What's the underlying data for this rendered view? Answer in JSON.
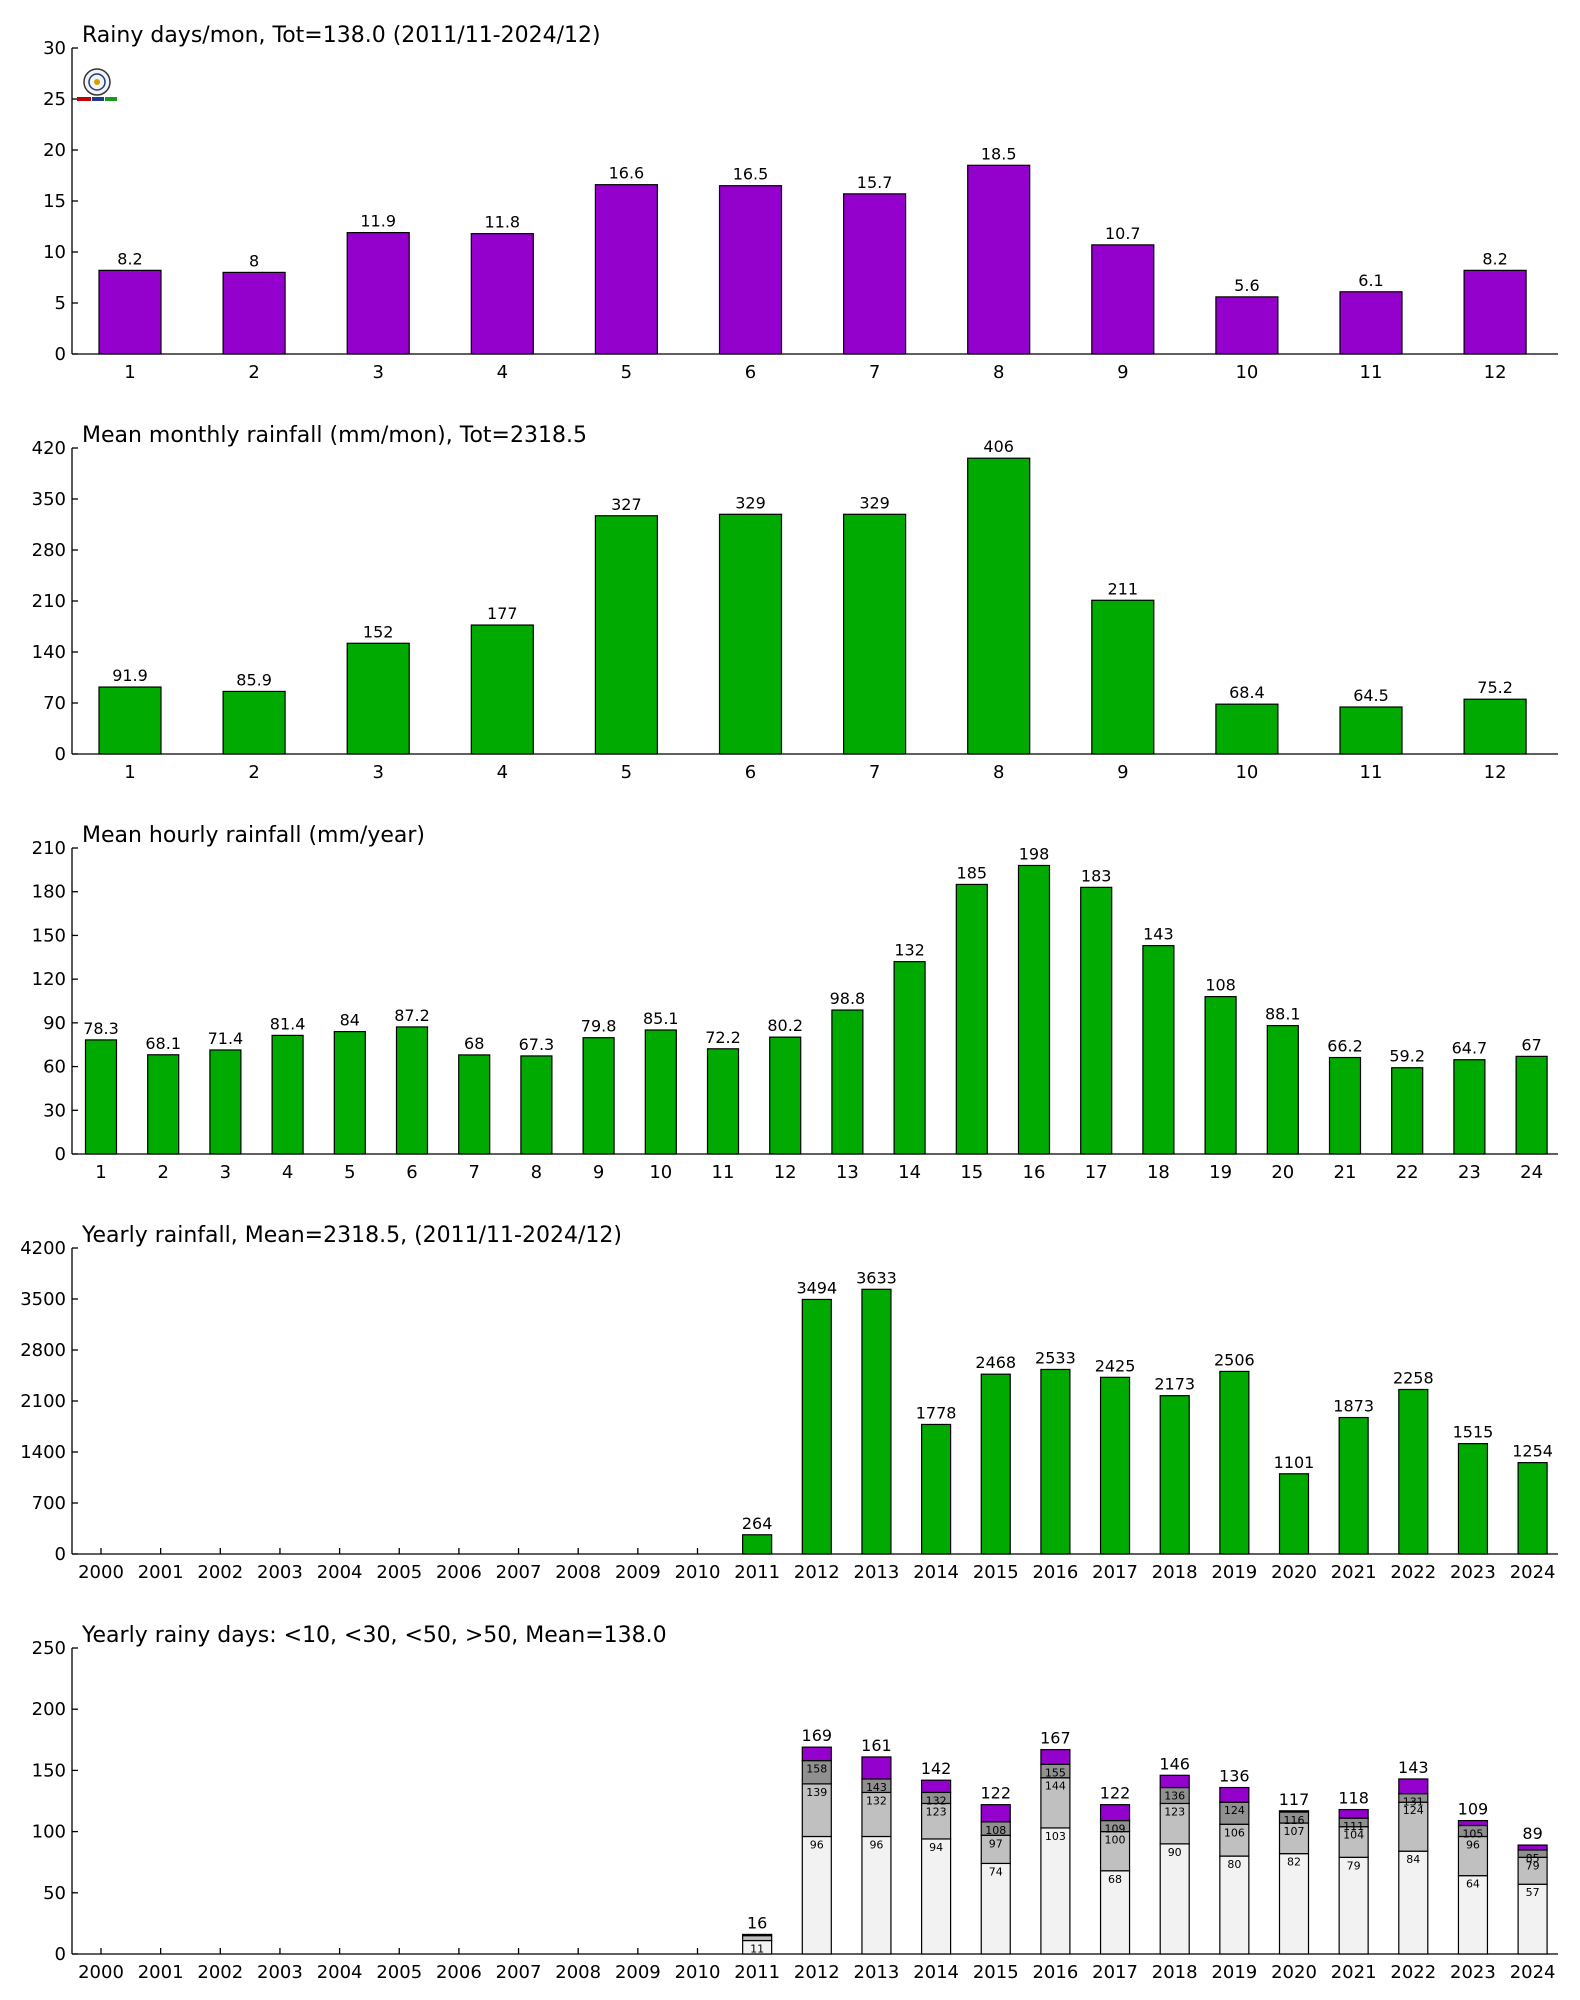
{
  "colors": {
    "purple": "#9400cc",
    "green": "#00aa00",
    "stack": [
      "#f2f2f2",
      "#c0c0c0",
      "#909090",
      "#9400cc"
    ]
  },
  "logo_icon": "station-logo-icon",
  "chart_data": [
    {
      "type": "bar",
      "title": "Rainy days/mon, Tot=138.0 (2011/11-2024/12)",
      "categories": [
        "1",
        "2",
        "3",
        "4",
        "5",
        "6",
        "7",
        "8",
        "9",
        "10",
        "11",
        "12"
      ],
      "values": [
        8.2,
        8,
        11.9,
        11.8,
        16.6,
        16.5,
        15.7,
        18.5,
        10.7,
        5.6,
        6.1,
        8.2
      ],
      "labels": [
        "8.2",
        "8",
        "11.9",
        "11.8",
        "16.6",
        "16.5",
        "15.7",
        "18.5",
        "10.7",
        "5.6",
        "6.1",
        "8.2"
      ],
      "ylim": [
        0,
        30
      ],
      "yticks": [
        "0",
        "5",
        "10",
        "15",
        "20",
        "25",
        "30"
      ],
      "color": "#9400cc"
    },
    {
      "type": "bar",
      "title": "Mean monthly rainfall (mm/mon), Tot=2318.5",
      "categories": [
        "1",
        "2",
        "3",
        "4",
        "5",
        "6",
        "7",
        "8",
        "9",
        "10",
        "11",
        "12"
      ],
      "values": [
        91.9,
        85.9,
        152,
        177,
        327,
        329,
        329,
        406,
        211,
        68.4,
        64.5,
        75.2
      ],
      "labels": [
        "91.9",
        "85.9",
        "152",
        "177",
        "327",
        "329",
        "329",
        "406",
        "211",
        "68.4",
        "64.5",
        "75.2"
      ],
      "ylim": [
        0,
        420
      ],
      "yticks": [
        "0",
        "70",
        "140",
        "210",
        "280",
        "350",
        "420"
      ],
      "color": "#00aa00"
    },
    {
      "type": "bar",
      "title": "Mean hourly rainfall (mm/year)",
      "categories": [
        "1",
        "2",
        "3",
        "4",
        "5",
        "6",
        "7",
        "8",
        "9",
        "10",
        "11",
        "12",
        "13",
        "14",
        "15",
        "16",
        "17",
        "18",
        "19",
        "20",
        "21",
        "22",
        "23",
        "24"
      ],
      "values": [
        78.3,
        68.1,
        71.4,
        81.4,
        84,
        87.2,
        68,
        67.3,
        79.8,
        85.1,
        72.2,
        80.2,
        98.8,
        132,
        185,
        198,
        183,
        143,
        108,
        88.1,
        66.2,
        59.2,
        64.7,
        67
      ],
      "labels": [
        "78.3",
        "68.1",
        "71.4",
        "81.4",
        "84",
        "87.2",
        "68",
        "67.3",
        "79.8",
        "85.1",
        "72.2",
        "80.2",
        "98.8",
        "132",
        "185",
        "198",
        "183",
        "143",
        "108",
        "88.1",
        "66.2",
        "59.2",
        "64.7",
        "67"
      ],
      "ylim": [
        0,
        210
      ],
      "yticks": [
        "0",
        "30",
        "60",
        "90",
        "120",
        "150",
        "180",
        "210"
      ],
      "color": "#00aa00"
    },
    {
      "type": "bar",
      "title": "Yearly rainfall, Mean=2318.5, (2011/11-2024/12)",
      "categories": [
        "2000",
        "2001",
        "2002",
        "2003",
        "2004",
        "2005",
        "2006",
        "2007",
        "2008",
        "2009",
        "2010",
        "2011",
        "2012",
        "2013",
        "2014",
        "2015",
        "2016",
        "2017",
        "2018",
        "2019",
        "2020",
        "2021",
        "2022",
        "2023",
        "2024"
      ],
      "values": [
        null,
        null,
        null,
        null,
        null,
        null,
        null,
        null,
        null,
        null,
        null,
        264,
        3494,
        3633,
        1778,
        2468,
        2533,
        2425,
        2173,
        2506,
        1101,
        1873,
        2258,
        1515,
        1254
      ],
      "labels": [
        "",
        "",
        "",
        "",
        "",
        "",
        "",
        "",
        "",
        "",
        "",
        "264",
        "3494",
        "3633",
        "1778",
        "2468",
        "2533",
        "2425",
        "2173",
        "2506",
        "1101",
        "1873",
        "2258",
        "1515",
        "1254"
      ],
      "ylim": [
        0,
        4200
      ],
      "yticks": [
        "0",
        "700",
        "1400",
        "2100",
        "2800",
        "3500",
        "4200"
      ],
      "color": "#00aa00"
    },
    {
      "type": "bar",
      "title": "Yearly rainy days: <10, <30, <50, >50, Mean=138.0",
      "categories": [
        "2000",
        "2001",
        "2002",
        "2003",
        "2004",
        "2005",
        "2006",
        "2007",
        "2008",
        "2009",
        "2010",
        "2011",
        "2012",
        "2013",
        "2014",
        "2015",
        "2016",
        "2017",
        "2018",
        "2019",
        "2020",
        "2021",
        "2022",
        "2023",
        "2024"
      ],
      "ylim": [
        0,
        250
      ],
      "yticks": [
        "0",
        "50",
        "100",
        "150",
        "200",
        "250"
      ],
      "stacked": [
        {
          "category": "2011",
          "cum": [
            11,
            15,
            16,
            16
          ],
          "labels": [
            "11",
            "",
            "",
            ""
          ],
          "total": "16"
        },
        {
          "category": "2012",
          "cum": [
            96,
            139,
            158,
            169
          ],
          "labels": [
            "96",
            "139",
            "158",
            ""
          ],
          "total": "169"
        },
        {
          "category": "2013",
          "cum": [
            96,
            132,
            143,
            161
          ],
          "labels": [
            "96",
            "132",
            "143",
            ""
          ],
          "total": "161"
        },
        {
          "category": "2014",
          "cum": [
            94,
            123,
            132,
            142
          ],
          "labels": [
            "94",
            "123",
            "132",
            ""
          ],
          "total": "142"
        },
        {
          "category": "2015",
          "cum": [
            74,
            97,
            108,
            122
          ],
          "labels": [
            "74",
            "97",
            "108",
            ""
          ],
          "total": "122"
        },
        {
          "category": "2016",
          "cum": [
            103,
            144,
            155,
            167
          ],
          "labels": [
            "103",
            "144",
            "155",
            ""
          ],
          "total": "167"
        },
        {
          "category": "2017",
          "cum": [
            68,
            100,
            109,
            122
          ],
          "labels": [
            "68",
            "100",
            "109",
            ""
          ],
          "total": "122"
        },
        {
          "category": "2018",
          "cum": [
            90,
            123,
            136,
            146
          ],
          "labels": [
            "90",
            "123",
            "136",
            ""
          ],
          "total": "146"
        },
        {
          "category": "2019",
          "cum": [
            80,
            106,
            124,
            136
          ],
          "labels": [
            "80",
            "106",
            "124",
            ""
          ],
          "total": "136"
        },
        {
          "category": "2020",
          "cum": [
            82,
            107,
            116,
            117
          ],
          "labels": [
            "82",
            "107",
            "116",
            ""
          ],
          "total": "117"
        },
        {
          "category": "2021",
          "cum": [
            79,
            104,
            111,
            118
          ],
          "labels": [
            "79",
            "104",
            "111",
            ""
          ],
          "total": "118"
        },
        {
          "category": "2022",
          "cum": [
            84,
            124,
            131,
            143
          ],
          "labels": [
            "84",
            "124",
            "131",
            ""
          ],
          "total": "143"
        },
        {
          "category": "2023",
          "cum": [
            64,
            96,
            105,
            109
          ],
          "labels": [
            "64",
            "96",
            "105",
            ""
          ],
          "total": "109"
        },
        {
          "category": "2024",
          "cum": [
            57,
            79,
            85,
            89
          ],
          "labels": [
            "57",
            "79",
            "85",
            ""
          ],
          "total": "89"
        }
      ]
    }
  ]
}
